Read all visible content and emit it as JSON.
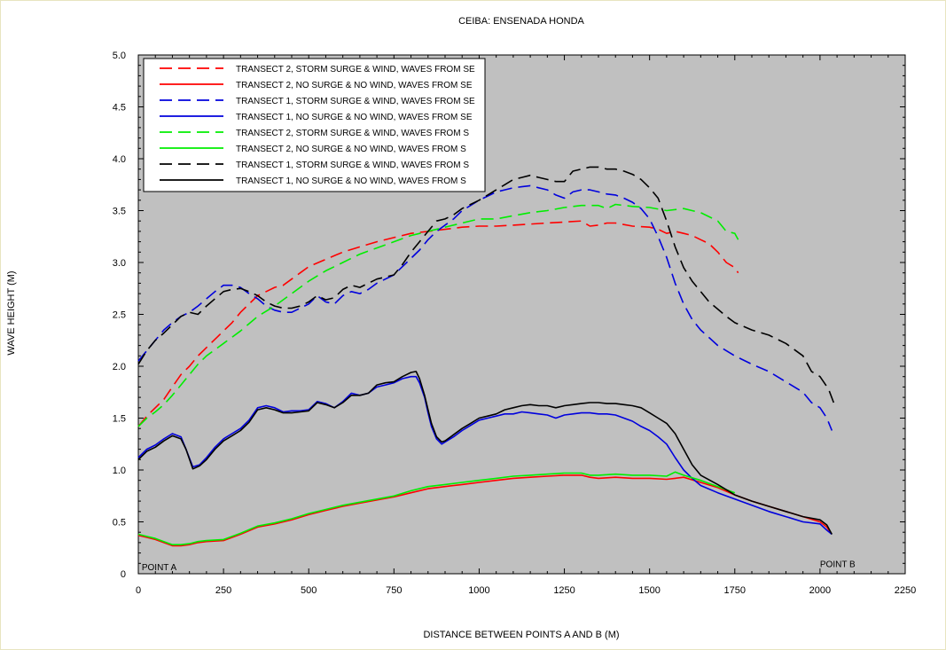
{
  "chart_data": {
    "type": "line",
    "title": "CEIBA: ENSENADA HONDA",
    "xlabel": "DISTANCE BETWEEN POINTS A AND B (M)",
    "ylabel": "WAVE HEIGHT (M)",
    "xlim": [
      0,
      2250
    ],
    "ylim": [
      0,
      5.0
    ],
    "grid": false,
    "legend_position": "top-left",
    "background": "#c0c0c0",
    "x_ticks": [
      0,
      250,
      500,
      750,
      1000,
      1250,
      1500,
      1750,
      2000,
      2250
    ],
    "y_ticks": [
      "0",
      "0.5",
      "1.0",
      "1.5",
      "2.0",
      "2.5",
      "3.0",
      "3.5",
      "4.0",
      "4.5",
      "5.0"
    ],
    "annotations": [
      {
        "text": "POINT A",
        "x": 10,
        "y": 0.07
      },
      {
        "text": "POINT B",
        "x": 2000,
        "y": 0.1
      }
    ],
    "series": [
      {
        "name": "TRANSECT 2, STORM SURGE & WIND, WAVES FROM SE",
        "color": "#ff0000",
        "dash": true,
        "x": [
          0,
          25,
          50,
          75,
          100,
          125,
          150,
          175,
          200,
          225,
          250,
          275,
          300,
          325,
          350,
          375,
          400,
          425,
          450,
          475,
          500,
          550,
          600,
          650,
          700,
          750,
          800,
          850,
          900,
          950,
          1000,
          1050,
          1100,
          1150,
          1200,
          1250,
          1300,
          1325,
          1350,
          1375,
          1400,
          1450,
          1500,
          1525,
          1550,
          1575,
          1600,
          1625,
          1650,
          1675,
          1700,
          1725,
          1750,
          1760
        ],
        "y": [
          1.42,
          1.52,
          1.6,
          1.68,
          1.8,
          1.92,
          2.0,
          2.1,
          2.18,
          2.26,
          2.34,
          2.42,
          2.52,
          2.6,
          2.68,
          2.72,
          2.76,
          2.78,
          2.84,
          2.9,
          2.96,
          3.03,
          3.1,
          3.15,
          3.2,
          3.24,
          3.28,
          3.3,
          3.32,
          3.34,
          3.35,
          3.35,
          3.36,
          3.37,
          3.38,
          3.39,
          3.4,
          3.35,
          3.36,
          3.38,
          3.38,
          3.35,
          3.34,
          3.32,
          3.28,
          3.3,
          3.28,
          3.26,
          3.22,
          3.18,
          3.1,
          3.0,
          2.95,
          2.9
        ]
      },
      {
        "name": "TRANSECT 2, NO SURGE & NO WIND, WAVES FROM SE",
        "color": "#ff0000",
        "dash": false,
        "x": [
          0,
          25,
          50,
          75,
          100,
          125,
          150,
          175,
          200,
          250,
          300,
          350,
          400,
          450,
          500,
          550,
          600,
          650,
          700,
          750,
          800,
          850,
          900,
          950,
          1000,
          1050,
          1100,
          1150,
          1200,
          1250,
          1300,
          1325,
          1350,
          1400,
          1450,
          1500,
          1550,
          1575,
          1600,
          1650,
          1700,
          1750,
          1800,
          1850,
          1900,
          1950,
          2000,
          2020,
          2030
        ],
        "y": [
          0.37,
          0.35,
          0.33,
          0.3,
          0.27,
          0.27,
          0.28,
          0.3,
          0.31,
          0.32,
          0.38,
          0.45,
          0.48,
          0.52,
          0.57,
          0.61,
          0.65,
          0.68,
          0.71,
          0.74,
          0.78,
          0.82,
          0.84,
          0.86,
          0.88,
          0.9,
          0.92,
          0.93,
          0.94,
          0.95,
          0.95,
          0.93,
          0.92,
          0.93,
          0.92,
          0.92,
          0.91,
          0.92,
          0.93,
          0.88,
          0.83,
          0.76,
          0.7,
          0.65,
          0.6,
          0.55,
          0.5,
          0.45,
          0.4
        ]
      },
      {
        "name": "TRANSECT 1, STORM SURGE & WIND, WAVES FROM SE",
        "color": "#0000dd",
        "dash": true,
        "x": [
          0,
          25,
          50,
          75,
          100,
          125,
          150,
          175,
          200,
          225,
          250,
          275,
          300,
          325,
          350,
          375,
          400,
          425,
          450,
          475,
          500,
          525,
          550,
          575,
          600,
          625,
          650,
          675,
          700,
          725,
          750,
          775,
          800,
          825,
          850,
          875,
          900,
          925,
          950,
          975,
          1000,
          1025,
          1050,
          1075,
          1100,
          1125,
          1150,
          1175,
          1200,
          1225,
          1250,
          1275,
          1300,
          1325,
          1350,
          1375,
          1400,
          1425,
          1450,
          1475,
          1500,
          1525,
          1550,
          1575,
          1600,
          1625,
          1650,
          1700,
          1750,
          1800,
          1850,
          1900,
          1950,
          1975,
          2000,
          2020,
          2035
        ],
        "y": [
          2.05,
          2.15,
          2.25,
          2.35,
          2.42,
          2.48,
          2.52,
          2.58,
          2.65,
          2.72,
          2.78,
          2.78,
          2.76,
          2.7,
          2.65,
          2.58,
          2.54,
          2.52,
          2.52,
          2.56,
          2.6,
          2.68,
          2.62,
          2.6,
          2.68,
          2.72,
          2.7,
          2.74,
          2.8,
          2.84,
          2.88,
          2.96,
          3.04,
          3.12,
          3.22,
          3.3,
          3.36,
          3.42,
          3.5,
          3.55,
          3.6,
          3.64,
          3.68,
          3.7,
          3.72,
          3.73,
          3.74,
          3.72,
          3.7,
          3.65,
          3.62,
          3.68,
          3.7,
          3.7,
          3.68,
          3.66,
          3.65,
          3.62,
          3.58,
          3.52,
          3.42,
          3.25,
          3.05,
          2.8,
          2.6,
          2.45,
          2.35,
          2.2,
          2.1,
          2.02,
          1.95,
          1.85,
          1.75,
          1.65,
          1.6,
          1.5,
          1.38
        ]
      },
      {
        "name": "TRANSECT 1, NO SURGE & NO WIND, WAVES FROM SE",
        "color": "#0000dd",
        "dash": false,
        "x": [
          0,
          25,
          50,
          75,
          100,
          125,
          140,
          160,
          180,
          200,
          225,
          250,
          275,
          300,
          325,
          350,
          375,
          400,
          425,
          450,
          475,
          500,
          525,
          550,
          575,
          600,
          625,
          650,
          675,
          700,
          725,
          750,
          775,
          800,
          815,
          825,
          840,
          850,
          860,
          875,
          890,
          900,
          925,
          950,
          975,
          1000,
          1025,
          1050,
          1075,
          1100,
          1125,
          1150,
          1175,
          1200,
          1225,
          1250,
          1275,
          1300,
          1325,
          1350,
          1375,
          1400,
          1425,
          1450,
          1475,
          1500,
          1525,
          1550,
          1575,
          1600,
          1625,
          1650,
          1700,
          1750,
          1800,
          1850,
          1900,
          1950,
          2000,
          2020,
          2035
        ],
        "y": [
          1.12,
          1.2,
          1.24,
          1.3,
          1.35,
          1.32,
          1.2,
          1.03,
          1.05,
          1.12,
          1.22,
          1.3,
          1.35,
          1.4,
          1.48,
          1.6,
          1.62,
          1.6,
          1.56,
          1.57,
          1.57,
          1.58,
          1.66,
          1.64,
          1.6,
          1.66,
          1.74,
          1.72,
          1.74,
          1.8,
          1.82,
          1.84,
          1.88,
          1.9,
          1.9,
          1.84,
          1.7,
          1.55,
          1.42,
          1.3,
          1.25,
          1.27,
          1.32,
          1.38,
          1.43,
          1.48,
          1.5,
          1.52,
          1.54,
          1.54,
          1.56,
          1.55,
          1.54,
          1.53,
          1.5,
          1.53,
          1.54,
          1.55,
          1.55,
          1.54,
          1.54,
          1.53,
          1.5,
          1.47,
          1.42,
          1.38,
          1.32,
          1.25,
          1.12,
          1.0,
          0.92,
          0.85,
          0.78,
          0.72,
          0.66,
          0.6,
          0.55,
          0.5,
          0.48,
          0.42,
          0.38
        ]
      },
      {
        "name": "TRANSECT 2, STORM SURGE & WIND, WAVES FROM S",
        "color": "#00ee00",
        "dash": true,
        "x": [
          0,
          25,
          50,
          75,
          100,
          125,
          150,
          175,
          200,
          250,
          300,
          350,
          400,
          450,
          500,
          550,
          600,
          650,
          700,
          750,
          800,
          850,
          900,
          950,
          1000,
          1050,
          1100,
          1150,
          1200,
          1250,
          1300,
          1350,
          1375,
          1400,
          1450,
          1500,
          1550,
          1600,
          1650,
          1700,
          1725,
          1750,
          1760
        ],
        "y": [
          1.42,
          1.5,
          1.56,
          1.63,
          1.72,
          1.82,
          1.92,
          2.02,
          2.1,
          2.22,
          2.34,
          2.48,
          2.58,
          2.7,
          2.82,
          2.92,
          3.0,
          3.08,
          3.14,
          3.2,
          3.26,
          3.3,
          3.34,
          3.38,
          3.42,
          3.42,
          3.45,
          3.48,
          3.5,
          3.53,
          3.55,
          3.55,
          3.52,
          3.56,
          3.54,
          3.53,
          3.5,
          3.52,
          3.48,
          3.4,
          3.3,
          3.28,
          3.22
        ]
      },
      {
        "name": "TRANSECT 2, NO SURGE & NO WIND, WAVES FROM S",
        "color": "#00ee00",
        "dash": false,
        "x": [
          0,
          25,
          50,
          75,
          100,
          125,
          150,
          175,
          200,
          250,
          300,
          350,
          400,
          450,
          500,
          550,
          600,
          650,
          700,
          750,
          800,
          850,
          900,
          950,
          1000,
          1050,
          1100,
          1150,
          1200,
          1250,
          1300,
          1325,
          1350,
          1400,
          1450,
          1500,
          1550,
          1575,
          1600,
          1650,
          1700,
          1750
        ],
        "y": [
          0.38,
          0.36,
          0.34,
          0.31,
          0.28,
          0.28,
          0.29,
          0.31,
          0.32,
          0.33,
          0.39,
          0.46,
          0.49,
          0.53,
          0.58,
          0.62,
          0.66,
          0.69,
          0.72,
          0.75,
          0.8,
          0.84,
          0.86,
          0.88,
          0.9,
          0.92,
          0.94,
          0.95,
          0.96,
          0.97,
          0.97,
          0.95,
          0.95,
          0.96,
          0.95,
          0.95,
          0.94,
          0.98,
          0.95,
          0.9,
          0.84,
          0.78
        ]
      },
      {
        "name": "TRANSECT 1, STORM SURGE & WIND, WAVES FROM S",
        "color": "#000000",
        "dash": true,
        "x": [
          0,
          25,
          50,
          75,
          100,
          125,
          150,
          175,
          200,
          225,
          250,
          275,
          300,
          325,
          350,
          375,
          400,
          425,
          450,
          475,
          500,
          525,
          550,
          575,
          600,
          625,
          650,
          675,
          700,
          725,
          750,
          775,
          800,
          825,
          850,
          875,
          900,
          925,
          950,
          975,
          1000,
          1025,
          1050,
          1075,
          1100,
          1125,
          1150,
          1175,
          1200,
          1225,
          1250,
          1275,
          1300,
          1325,
          1350,
          1375,
          1400,
          1425,
          1450,
          1475,
          1500,
          1525,
          1550,
          1575,
          1600,
          1625,
          1650,
          1675,
          1700,
          1725,
          1750,
          1800,
          1850,
          1900,
          1950,
          1975,
          2000,
          2025,
          2040
        ],
        "y": [
          2.02,
          2.15,
          2.25,
          2.32,
          2.4,
          2.48,
          2.52,
          2.5,
          2.58,
          2.65,
          2.72,
          2.74,
          2.75,
          2.72,
          2.68,
          2.62,
          2.58,
          2.56,
          2.56,
          2.58,
          2.62,
          2.68,
          2.64,
          2.66,
          2.74,
          2.78,
          2.76,
          2.8,
          2.84,
          2.86,
          2.88,
          2.98,
          3.1,
          3.2,
          3.3,
          3.4,
          3.42,
          3.46,
          3.52,
          3.56,
          3.6,
          3.65,
          3.7,
          3.75,
          3.8,
          3.82,
          3.84,
          3.82,
          3.8,
          3.78,
          3.78,
          3.88,
          3.9,
          3.92,
          3.92,
          3.9,
          3.9,
          3.88,
          3.85,
          3.8,
          3.72,
          3.62,
          3.4,
          3.15,
          2.95,
          2.82,
          2.72,
          2.62,
          2.55,
          2.48,
          2.42,
          2.35,
          2.3,
          2.22,
          2.1,
          1.95,
          1.9,
          1.78,
          1.65
        ]
      },
      {
        "name": "TRANSECT 1, NO SURGE & NO WIND, WAVES FROM S",
        "color": "#000000",
        "dash": false,
        "x": [
          0,
          25,
          50,
          75,
          100,
          125,
          140,
          160,
          180,
          200,
          225,
          250,
          275,
          300,
          325,
          350,
          375,
          400,
          425,
          450,
          475,
          500,
          525,
          550,
          575,
          600,
          625,
          650,
          675,
          700,
          725,
          750,
          775,
          800,
          815,
          825,
          840,
          850,
          860,
          875,
          890,
          900,
          925,
          950,
          975,
          1000,
          1025,
          1050,
          1075,
          1100,
          1125,
          1150,
          1175,
          1200,
          1225,
          1250,
          1275,
          1300,
          1325,
          1350,
          1375,
          1400,
          1425,
          1450,
          1475,
          1500,
          1525,
          1550,
          1575,
          1600,
          1625,
          1650,
          1700,
          1750,
          1800,
          1850,
          1900,
          1950,
          2000,
          2020,
          2035
        ],
        "y": [
          1.1,
          1.18,
          1.22,
          1.28,
          1.33,
          1.3,
          1.2,
          1.01,
          1.04,
          1.1,
          1.2,
          1.28,
          1.33,
          1.38,
          1.46,
          1.58,
          1.6,
          1.58,
          1.55,
          1.55,
          1.56,
          1.57,
          1.65,
          1.63,
          1.6,
          1.65,
          1.72,
          1.72,
          1.74,
          1.82,
          1.84,
          1.85,
          1.9,
          1.94,
          1.95,
          1.88,
          1.72,
          1.58,
          1.45,
          1.32,
          1.27,
          1.28,
          1.34,
          1.4,
          1.45,
          1.5,
          1.52,
          1.54,
          1.58,
          1.6,
          1.62,
          1.63,
          1.62,
          1.62,
          1.6,
          1.62,
          1.63,
          1.64,
          1.65,
          1.65,
          1.64,
          1.64,
          1.63,
          1.62,
          1.6,
          1.55,
          1.5,
          1.45,
          1.35,
          1.2,
          1.05,
          0.95,
          0.86,
          0.76,
          0.7,
          0.65,
          0.6,
          0.55,
          0.52,
          0.47,
          0.38
        ]
      }
    ]
  }
}
